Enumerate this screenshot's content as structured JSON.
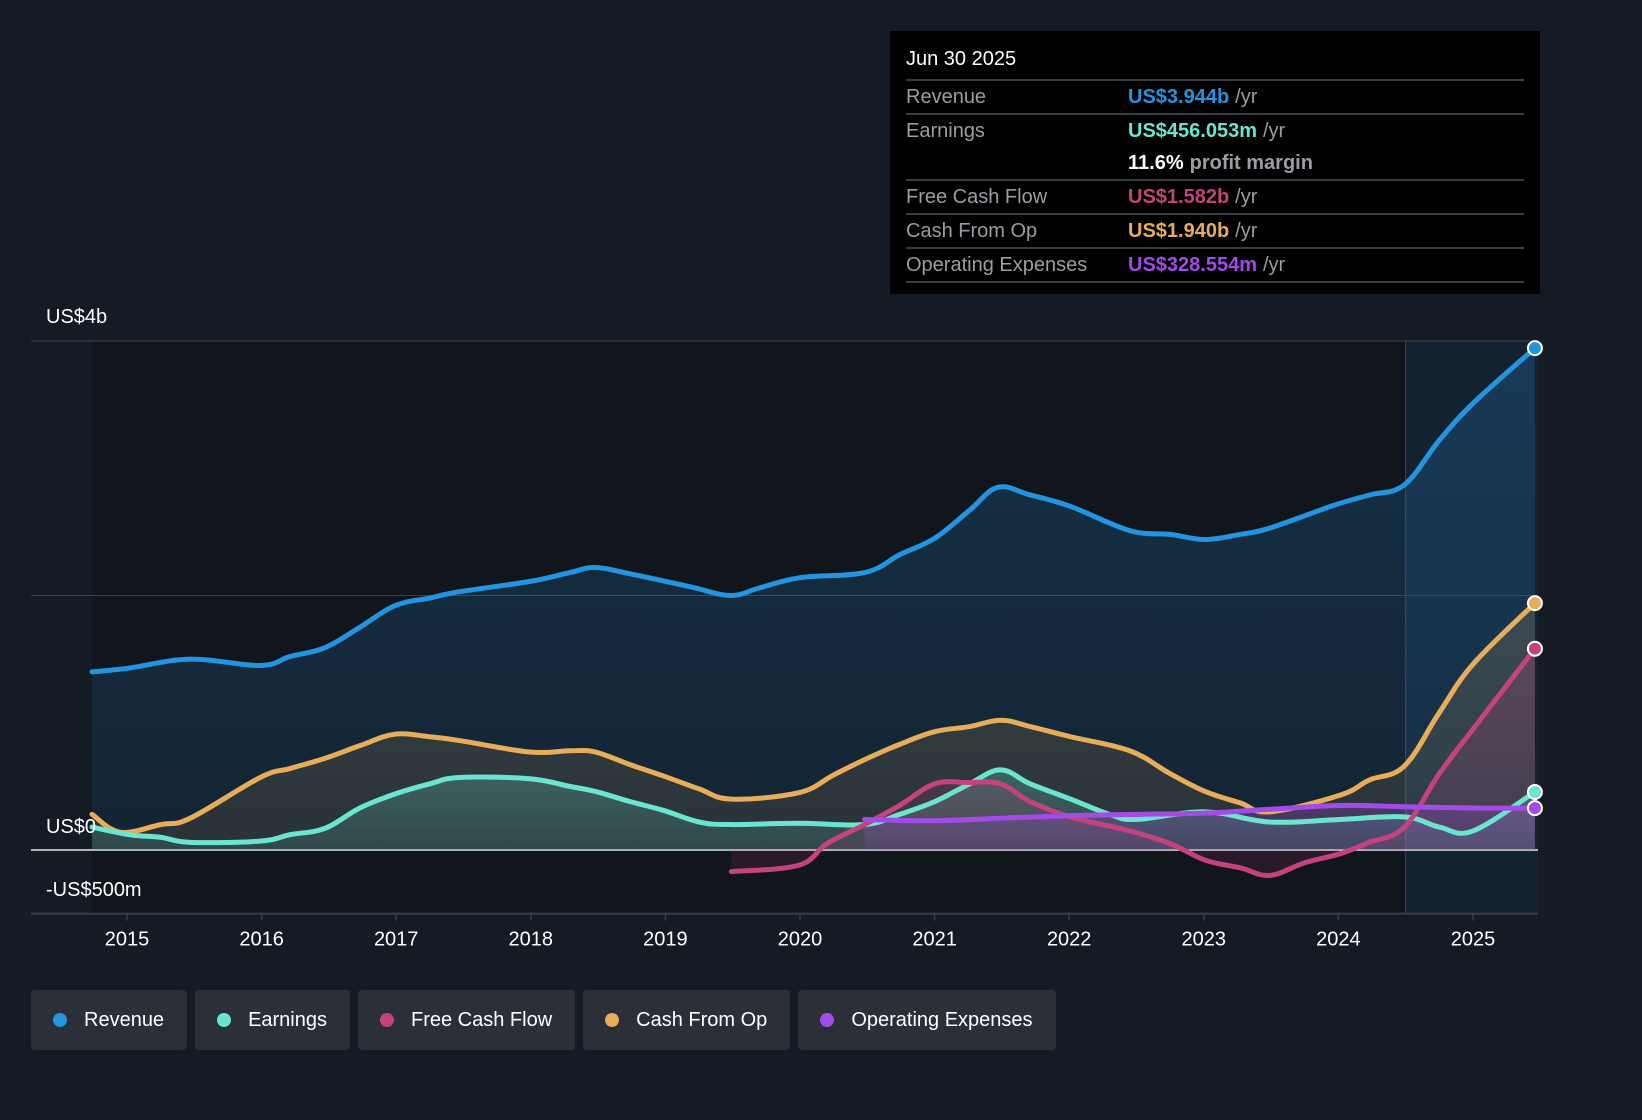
{
  "tooltip": {
    "date": "Jun 30 2025",
    "rows": [
      {
        "label": "Revenue",
        "value": "US$3.944b",
        "unit": "/yr",
        "color": "#2394df"
      },
      {
        "label": "Earnings",
        "value": "US$456.053m",
        "unit": "/yr",
        "color": "#6ce5d0"
      },
      {
        "label": "",
        "margin_value": "11.6%",
        "margin_label": "profit margin"
      },
      {
        "label": "Free Cash Flow",
        "value": "US$1.582b",
        "unit": "/yr",
        "color": "#c4437f"
      },
      {
        "label": "Cash From Op",
        "value": "US$1.940b",
        "unit": "/yr",
        "color": "#e8ad5a"
      },
      {
        "label": "Operating Expenses",
        "value": "US$328.554m",
        "unit": "/yr",
        "color": "#a24be8"
      }
    ]
  },
  "legend": [
    {
      "label": "Revenue",
      "color": "#2394df"
    },
    {
      "label": "Earnings",
      "color": "#6ce5d0"
    },
    {
      "label": "Free Cash Flow",
      "color": "#c4437f"
    },
    {
      "label": "Cash From Op",
      "color": "#e8ad5a"
    },
    {
      "label": "Operating Expenses",
      "color": "#a24be8"
    }
  ],
  "chart_data": {
    "type": "line",
    "title": "",
    "xlabel": "",
    "ylabel": "",
    "ylim": [
      -0.5,
      4.0
    ],
    "y_unit": "US$ billions",
    "y_tick_labels": [
      {
        "value": 4.0,
        "label": "US$4b"
      },
      {
        "value": 0.0,
        "label": "US$0"
      },
      {
        "value": -0.5,
        "label": "-US$500m"
      }
    ],
    "y_gridlines": [
      4.0,
      2.0,
      0.0
    ],
    "xlim": [
      2014.26,
      2025.43
    ],
    "x_ticks": [
      2015,
      2016,
      2017,
      2018,
      2019,
      2020,
      2021,
      2022,
      2023,
      2024,
      2025
    ],
    "highlight_range": [
      2024.5,
      2025.43
    ],
    "legend_position": "bottom",
    "series": [
      {
        "name": "Revenue",
        "color": "#2394df",
        "x": [
          2014.74,
          2015.02,
          2015.47,
          2015.99,
          2016.21,
          2016.47,
          2016.73,
          2016.99,
          2017.25,
          2017.47,
          2017.99,
          2018.29,
          2018.48,
          2018.74,
          2019.18,
          2019.48,
          2019.7,
          2020.0,
          2020.48,
          2020.74,
          2021.0,
          2021.26,
          2021.47,
          2021.71,
          2022.01,
          2022.45,
          2022.75,
          2023.01,
          2023.27,
          2023.49,
          2023.97,
          2024.23,
          2024.49,
          2024.75,
          2025.01,
          2025.46
        ],
        "values": [
          1.4,
          1.43,
          1.5,
          1.45,
          1.52,
          1.59,
          1.75,
          1.92,
          1.98,
          2.03,
          2.11,
          2.18,
          2.22,
          2.17,
          2.07,
          2.0,
          2.06,
          2.14,
          2.18,
          2.32,
          2.45,
          2.67,
          2.85,
          2.79,
          2.7,
          2.51,
          2.48,
          2.44,
          2.48,
          2.53,
          2.71,
          2.79,
          2.87,
          3.22,
          3.52,
          3.944
        ]
      },
      {
        "name": "Earnings",
        "color": "#6ce5d0",
        "x": [
          2014.74,
          2015.02,
          2015.25,
          2015.47,
          2015.99,
          2016.21,
          2016.47,
          2016.73,
          2016.99,
          2017.25,
          2017.47,
          2017.99,
          2018.29,
          2018.48,
          2018.74,
          2018.99,
          2019.25,
          2019.48,
          2019.99,
          2020.48,
          2020.74,
          2021.0,
          2021.26,
          2021.49,
          2021.71,
          2022.01,
          2022.3,
          2022.5,
          2023.01,
          2023.49,
          2024.01,
          2024.49,
          2024.75,
          2025.0,
          2025.46
        ],
        "values": [
          0.18,
          0.12,
          0.1,
          0.06,
          0.07,
          0.12,
          0.17,
          0.33,
          0.44,
          0.52,
          0.57,
          0.56,
          0.5,
          0.46,
          0.38,
          0.31,
          0.22,
          0.2,
          0.21,
          0.2,
          0.28,
          0.38,
          0.52,
          0.63,
          0.52,
          0.4,
          0.28,
          0.24,
          0.3,
          0.22,
          0.24,
          0.26,
          0.18,
          0.15,
          0.456
        ]
      },
      {
        "name": "Free Cash Flow",
        "color": "#c4437f",
        "x": [
          2019.49,
          2019.99,
          2020.2,
          2020.48,
          2020.74,
          2021.0,
          2021.25,
          2021.49,
          2021.71,
          2022.01,
          2022.45,
          2022.75,
          2023.01,
          2023.27,
          2023.49,
          2023.75,
          2024.01,
          2024.23,
          2024.49,
          2024.75,
          2025.0,
          2025.46
        ],
        "values": [
          -0.17,
          -0.12,
          0.05,
          0.2,
          0.35,
          0.52,
          0.53,
          0.52,
          0.38,
          0.26,
          0.15,
          0.05,
          -0.08,
          -0.14,
          -0.2,
          -0.1,
          -0.03,
          0.06,
          0.18,
          0.6,
          0.95,
          1.582
        ]
      },
      {
        "name": "Cash From Op",
        "color": "#e8ad5a",
        "x": [
          2014.74,
          2014.95,
          2015.25,
          2015.47,
          2015.99,
          2016.21,
          2016.47,
          2016.73,
          2016.99,
          2017.25,
          2017.47,
          2017.99,
          2018.29,
          2018.48,
          2018.74,
          2018.99,
          2019.25,
          2019.49,
          2019.99,
          2020.25,
          2020.48,
          2020.74,
          2021.0,
          2021.26,
          2021.49,
          2021.71,
          2022.01,
          2022.45,
          2022.75,
          2023.01,
          2023.27,
          2023.49,
          2024.01,
          2024.23,
          2024.49,
          2024.75,
          2025.0,
          2025.46
        ],
        "values": [
          0.28,
          0.14,
          0.2,
          0.25,
          0.57,
          0.64,
          0.72,
          0.82,
          0.91,
          0.89,
          0.86,
          0.77,
          0.78,
          0.77,
          0.67,
          0.58,
          0.48,
          0.4,
          0.45,
          0.59,
          0.71,
          0.83,
          0.93,
          0.97,
          1.02,
          0.97,
          0.89,
          0.78,
          0.6,
          0.46,
          0.37,
          0.3,
          0.43,
          0.55,
          0.66,
          1.08,
          1.46,
          1.94
        ]
      },
      {
        "name": "Operating Expenses",
        "color": "#a24be8",
        "x": [
          2020.48,
          2021.0,
          2021.49,
          2022.01,
          2022.5,
          2023.01,
          2023.49,
          2024.01,
          2024.49,
          2025.0,
          2025.46
        ],
        "values": [
          0.24,
          0.23,
          0.25,
          0.27,
          0.28,
          0.29,
          0.32,
          0.35,
          0.34,
          0.33,
          0.329
        ]
      }
    ]
  }
}
